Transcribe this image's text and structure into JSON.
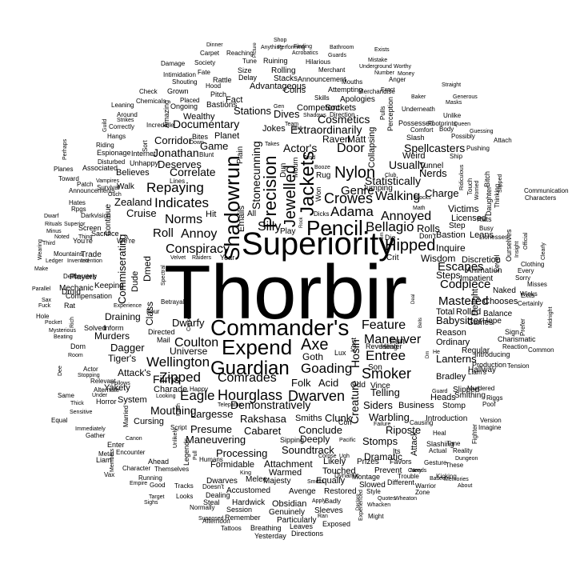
{
  "text_color": "#000000",
  "background_color": "#ffffff",
  "words": [
    "Thorbir",
    "Superiority",
    "Commander's",
    "Pencil",
    "Expend",
    "Guardian",
    "Shadowrun",
    "Precision",
    "Jackets",
    "Jewelled",
    "Crowes",
    "Genre",
    "Nylon",
    "Adama",
    "Bellagio",
    "Hipped",
    "Annoyed",
    "Walking",
    "Door",
    "Axe",
    "Dwarven",
    "Smoker",
    "Hourglass",
    "Feature",
    "Maneuver",
    "Entree",
    "Goading",
    "Wellington",
    "Zipped",
    "Eagle",
    "Comrades",
    "Coulton",
    "Conspiracy",
    "Indicates",
    "Repaying",
    "Norms",
    "Roll",
    "Annoy",
    "Silly",
    "Correlate",
    "Mastered",
    "Codpiece",
    "Escapes",
    "Wisdom",
    "Rolls",
    "Charge",
    "Statistically",
    "Usually",
    "Nerds",
    "Spellcasters",
    "Raven",
    "Matt",
    "Extraordinarily",
    "Cosmetics",
    "Actor's",
    "Dives",
    "Stations",
    "Game",
    "Documentary",
    "Corridor",
    "Jonathan",
    "Deserves",
    "Zealand",
    "Cruise",
    "Commiserating",
    "Draining",
    "Murders",
    "Dagger",
    "Films",
    "Mouthing",
    "Largesse",
    "Presume",
    "Processing",
    "Maneuvering",
    "Cabaret",
    "Rakshasa",
    "Clunk",
    "Conclude",
    "Deeply",
    "Soundtrack",
    "Stomps",
    "Attachment",
    "Dramatic",
    "Riposte",
    "Warbling",
    "Telling",
    "Siders",
    "Business",
    "Folk",
    "Acid",
    "Demonstratively",
    "Goth",
    "Hosin",
    "Creature",
    "Babysitter",
    "Total",
    "Rolled",
    "Reason",
    "Ordinary",
    "Lanterns",
    "Games",
    "Bradley",
    "Dwarfy",
    "Universe",
    "Attack's",
    "Tiger's",
    "Yakety",
    "System",
    "Charade",
    "Cursing",
    "Formidable",
    "Dwarves",
    "Melee",
    "Majesty",
    "Equally",
    "Touched",
    "Prizes",
    "Prevent",
    "Slowed",
    "Restored",
    "Obsidian",
    "Genuinely",
    "Particularly",
    "Sleeves",
    "Hardwick",
    "Accustomed",
    "Session",
    "Dealing",
    "Steal",
    "Remember",
    "Breathing",
    "Leaves",
    "Exposed",
    "Directions",
    "Yesterday",
    "Tattoos",
    "Afternoon",
    "Smiths",
    "Avenge",
    "Warmed",
    "Likely",
    "Plain",
    "Stonecunning",
    "Emails",
    "Play",
    "All",
    "Hit",
    "Dun",
    "Mourn",
    "Won",
    "Jumping",
    "Die",
    "Don't",
    "Fun",
    "Lux",
    "Crit",
    "Son",
    "Odd",
    "Vince",
    "Victims",
    "Licensed",
    "Rats",
    "Bastion",
    "Leans",
    "Inquire",
    "Discretion",
    "Steps",
    "Impatient",
    "Naked",
    "Chooses",
    "Delight",
    "Balance",
    "Hope",
    "Hallway",
    "Slipped",
    "Heads",
    "Smithing",
    "Stomp",
    "Introduction",
    "Attack",
    "Slashing",
    "Time",
    "Actual",
    "Reality",
    "Favors",
    "Gesture",
    "These",
    "Kicking",
    "Warrior",
    "Zone",
    "Different",
    "Trouble",
    "Montage",
    "Dynamic",
    "Smells",
    "Its",
    "Causing",
    "Riggs",
    "Poof",
    "Version",
    "Imagine",
    "Fighter",
    "Murdered",
    "Production",
    "Tension",
    "Liam's",
    "Introducing",
    "Regular",
    "Charismatic",
    "Common",
    "Sign",
    "Reaction",
    "Exits",
    "Winks",
    "Certainly",
    "Prefer",
    "Midnight",
    "Misses",
    "Sorry",
    "Every",
    "Clothing",
    "Insight",
    "Official",
    "Clearly",
    "Ourselves",
    "Communication",
    "Characters",
    "Level",
    "Daughter",
    "Thinking",
    "Busy",
    "Bitch",
    "Slipped",
    "Worried",
    "Ridiculous",
    "Touch",
    "Attach",
    "Pushing",
    "Body",
    "Guessing",
    "Possibly",
    "Slash",
    "Possessed",
    "Unlike",
    "Comfort",
    "Underneath",
    "Masks",
    "Generous",
    "Footprints",
    "Queen",
    "Baker",
    "Straight",
    "Anger",
    "Money",
    "Worthy",
    "Mistake",
    "Underground",
    "Number",
    "Exact",
    "Exists",
    "Bathroom",
    "Finding",
    "Shop",
    "Acrobatics",
    "Guards",
    "Hilarious",
    "Merchant",
    "Announcement",
    "Mouths",
    "Attempting",
    "Merchandise",
    "Apologies",
    "Skills",
    "Sockets",
    "Pulls",
    "Perception",
    "Collapsing",
    "Direction",
    "Competent",
    "Shadows",
    "Team",
    "Jokes",
    "Takes",
    "Gen",
    "Fact",
    "Coins",
    "Advantageous",
    "Stacks",
    "Rolling",
    "Ruining",
    "Anything",
    "Performing",
    "Tune",
    "Size",
    "Delay",
    "Rattle",
    "Hood",
    "Fate",
    "Society",
    "Carpet",
    "Reaching",
    "Picture",
    "Dinner",
    "Damage",
    "Intimidation",
    "Shouting",
    "Grown",
    "Placed",
    "Ongoing",
    "Pitch",
    "Wealthy",
    "Bastions",
    "Chemicals",
    "Check",
    "Leaning",
    "Around",
    "Strikes",
    "Guild",
    "Riding",
    "Correctly",
    "Incredible",
    "Amazing",
    "Sort",
    "Hangs",
    "Espionage",
    "Internet",
    "Unhappy",
    "Bites",
    "Planet",
    "Blunt",
    "Down",
    "Lines",
    "Believes",
    "Disturbed",
    "Associated",
    "Planes",
    "Perhaps",
    "Toward",
    "Vampires",
    "Announcements",
    "Patch",
    "Survival",
    "Ouch",
    "Walk",
    "Hates",
    "Rpgs",
    "Darkvision",
    "Continue",
    "Dwarf",
    "Rituals",
    "Superior",
    "Minus",
    "Screen",
    "Sacrifice",
    "Noted",
    "Thing",
    "You're",
    "Third",
    "Deliberately",
    "Wearing",
    "Mountains",
    "Trade",
    "Ledger",
    "Invented",
    "Intention",
    "Make",
    "We're",
    "Players",
    "Parallel",
    "Mechanic",
    "Keeping",
    "Spectral",
    "Dmed",
    "Dude",
    "Velvet",
    "Raiders",
    "Year",
    "Druid",
    "Rat",
    "Compensation",
    "Experience",
    "Betrayal",
    "Four",
    "Sax",
    "Fuck",
    "Hole",
    "Pocket",
    "Mysterious",
    "Rich",
    "Beating",
    "Solved",
    "Inform",
    "Class",
    "Curse",
    "Dom",
    "Mail",
    "Directed",
    "Dee",
    "Room",
    "Stopping",
    "Actor",
    "Relevant",
    "Follows",
    "Alternate",
    "Thick",
    "Horror",
    "Under",
    "Same",
    "Equal",
    "Sensitive",
    "Immediately",
    "Gather",
    "Married",
    "Looking",
    "Script",
    "Kash",
    "Happy",
    "Telepathic",
    "Canon",
    "Enter",
    "Metal",
    "Encounter",
    "Liam",
    "Ahead",
    "Legends",
    "Unlikely",
    "Pull",
    "Humans",
    "Members",
    "Vax",
    "Character",
    "Themselves",
    "Running",
    "Empire",
    "Good",
    "Tracks",
    "Looks",
    "Sighs",
    "Target",
    "Normally",
    "Doesn't",
    "Supposed",
    "Apply",
    "Badly",
    "Ran",
    "Declare",
    "Might",
    "Whacken",
    "Wheaton",
    "Experienced",
    "Style",
    "Quotes",
    "Failure",
    "Carry",
    "Needs",
    "Based",
    "Memories",
    "Guard",
    "About",
    "Heal",
    "Dungeon",
    "Sipping",
    "Corpse",
    "Ugh",
    "Pacific",
    "Con",
    "King",
    "He",
    "Revealing",
    "Healer",
    "Math",
    "Club",
    "Blocks",
    "Tunnel",
    "Ship",
    "Weird",
    "Step",
    "Animation",
    "Booze",
    "Rug",
    "Dicks",
    "Gm",
    "Wall",
    "Tend",
    "Deal",
    "Bells",
    "Kest",
    "Rock",
    "Dm",
    "Lionesses",
    "Faith",
    "War"
  ]
}
